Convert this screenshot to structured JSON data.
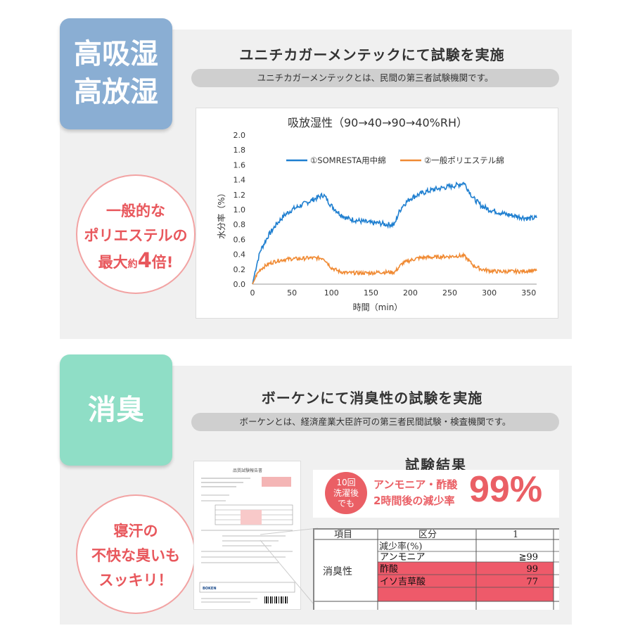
{
  "section1": {
    "tag_lines": [
      "高吸湿",
      "高放湿"
    ],
    "title": "ユニチカガーメンテックにて試験を実施",
    "subtitle": "ユニチカガーメンテックとは、民間の第三者試験機関です。",
    "circle": {
      "line1": "一般的な",
      "line2": "ポリエステルの",
      "line3_a": "最大",
      "line3_b": "約",
      "line3_c": "4",
      "line3_d": "倍!"
    }
  },
  "chart_data": {
    "type": "line",
    "title": "吸放湿性（90→40→90→40%RH）",
    "xlabel": "時間（min）",
    "ylabel": "水分率（%）",
    "xlim": [
      0,
      360
    ],
    "ylim": [
      0,
      2.0
    ],
    "xticks": [
      0,
      50,
      100,
      150,
      200,
      250,
      300,
      350
    ],
    "yticks": [
      "0.0",
      "0.2",
      "0.4",
      "0.6",
      "0.8",
      "1.0",
      "1.2",
      "1.4",
      "1.6",
      "1.8",
      "2.0"
    ],
    "legend_position": "top",
    "series": [
      {
        "name": "①SOMRESTA用中綿",
        "color": "#1f7fd0",
        "x": [
          0,
          5,
          10,
          20,
          30,
          40,
          50,
          60,
          70,
          80,
          90,
          100,
          110,
          120,
          130,
          140,
          150,
          160,
          170,
          180,
          185,
          190,
          200,
          210,
          220,
          230,
          240,
          250,
          260,
          268,
          280,
          290,
          300,
          310,
          320,
          330,
          340,
          350,
          360
        ],
        "y": [
          0.0,
          0.25,
          0.45,
          0.65,
          0.8,
          0.92,
          1.0,
          1.05,
          1.1,
          1.15,
          1.2,
          1.05,
          0.95,
          0.88,
          0.86,
          0.84,
          0.82,
          0.82,
          0.8,
          0.8,
          0.95,
          1.05,
          1.15,
          1.2,
          1.24,
          1.27,
          1.29,
          1.31,
          1.33,
          1.36,
          1.15,
          1.05,
          1.0,
          0.97,
          0.94,
          0.92,
          0.9,
          0.88,
          0.89
        ]
      },
      {
        "name": "②一般ポリエステル綿",
        "color": "#f08a33",
        "x": [
          0,
          5,
          10,
          20,
          30,
          40,
          50,
          60,
          70,
          80,
          90,
          100,
          110,
          120,
          130,
          140,
          150,
          160,
          170,
          180,
          185,
          190,
          200,
          210,
          220,
          230,
          240,
          250,
          260,
          268,
          280,
          290,
          300,
          310,
          320,
          330,
          340,
          350,
          360
        ],
        "y": [
          0.0,
          0.12,
          0.2,
          0.27,
          0.31,
          0.33,
          0.34,
          0.34,
          0.35,
          0.35,
          0.35,
          0.22,
          0.17,
          0.15,
          0.15,
          0.15,
          0.15,
          0.16,
          0.16,
          0.16,
          0.22,
          0.28,
          0.32,
          0.35,
          0.36,
          0.36,
          0.37,
          0.37,
          0.38,
          0.38,
          0.25,
          0.2,
          0.18,
          0.17,
          0.17,
          0.17,
          0.17,
          0.18,
          0.18
        ]
      }
    ]
  },
  "section2": {
    "tag": "消臭",
    "title": "ボーケンにて消臭性の試験を実施",
    "subtitle": "ボーケンとは、経済産業大臣許可の第三者民間試験・検査機関です。",
    "circle": {
      "line1": "寝汗の",
      "line2": "不快な臭いも",
      "line3": "スッキリ！"
    },
    "result_title": "試験結果",
    "badge_lines": [
      "10回",
      "洗濯後",
      "でも"
    ],
    "result_desc_line1": "アンモニア・酢酸",
    "result_desc_line2": "2時間後の減少率",
    "result_pct": "99%",
    "report_title": "品質試験報告書",
    "report_logo": "BOKEN",
    "table": {
      "headers": [
        "項目",
        "区分",
        "1"
      ],
      "row_label": "消臭性",
      "subheader": "減少率(%)",
      "rows": [
        {
          "name": "アンモニア",
          "value": "≧99"
        },
        {
          "name": "酢酸",
          "value": "99"
        },
        {
          "name": "イソ吉草酸",
          "value": "77"
        }
      ],
      "highlight_color": "#ee5a6a"
    }
  }
}
